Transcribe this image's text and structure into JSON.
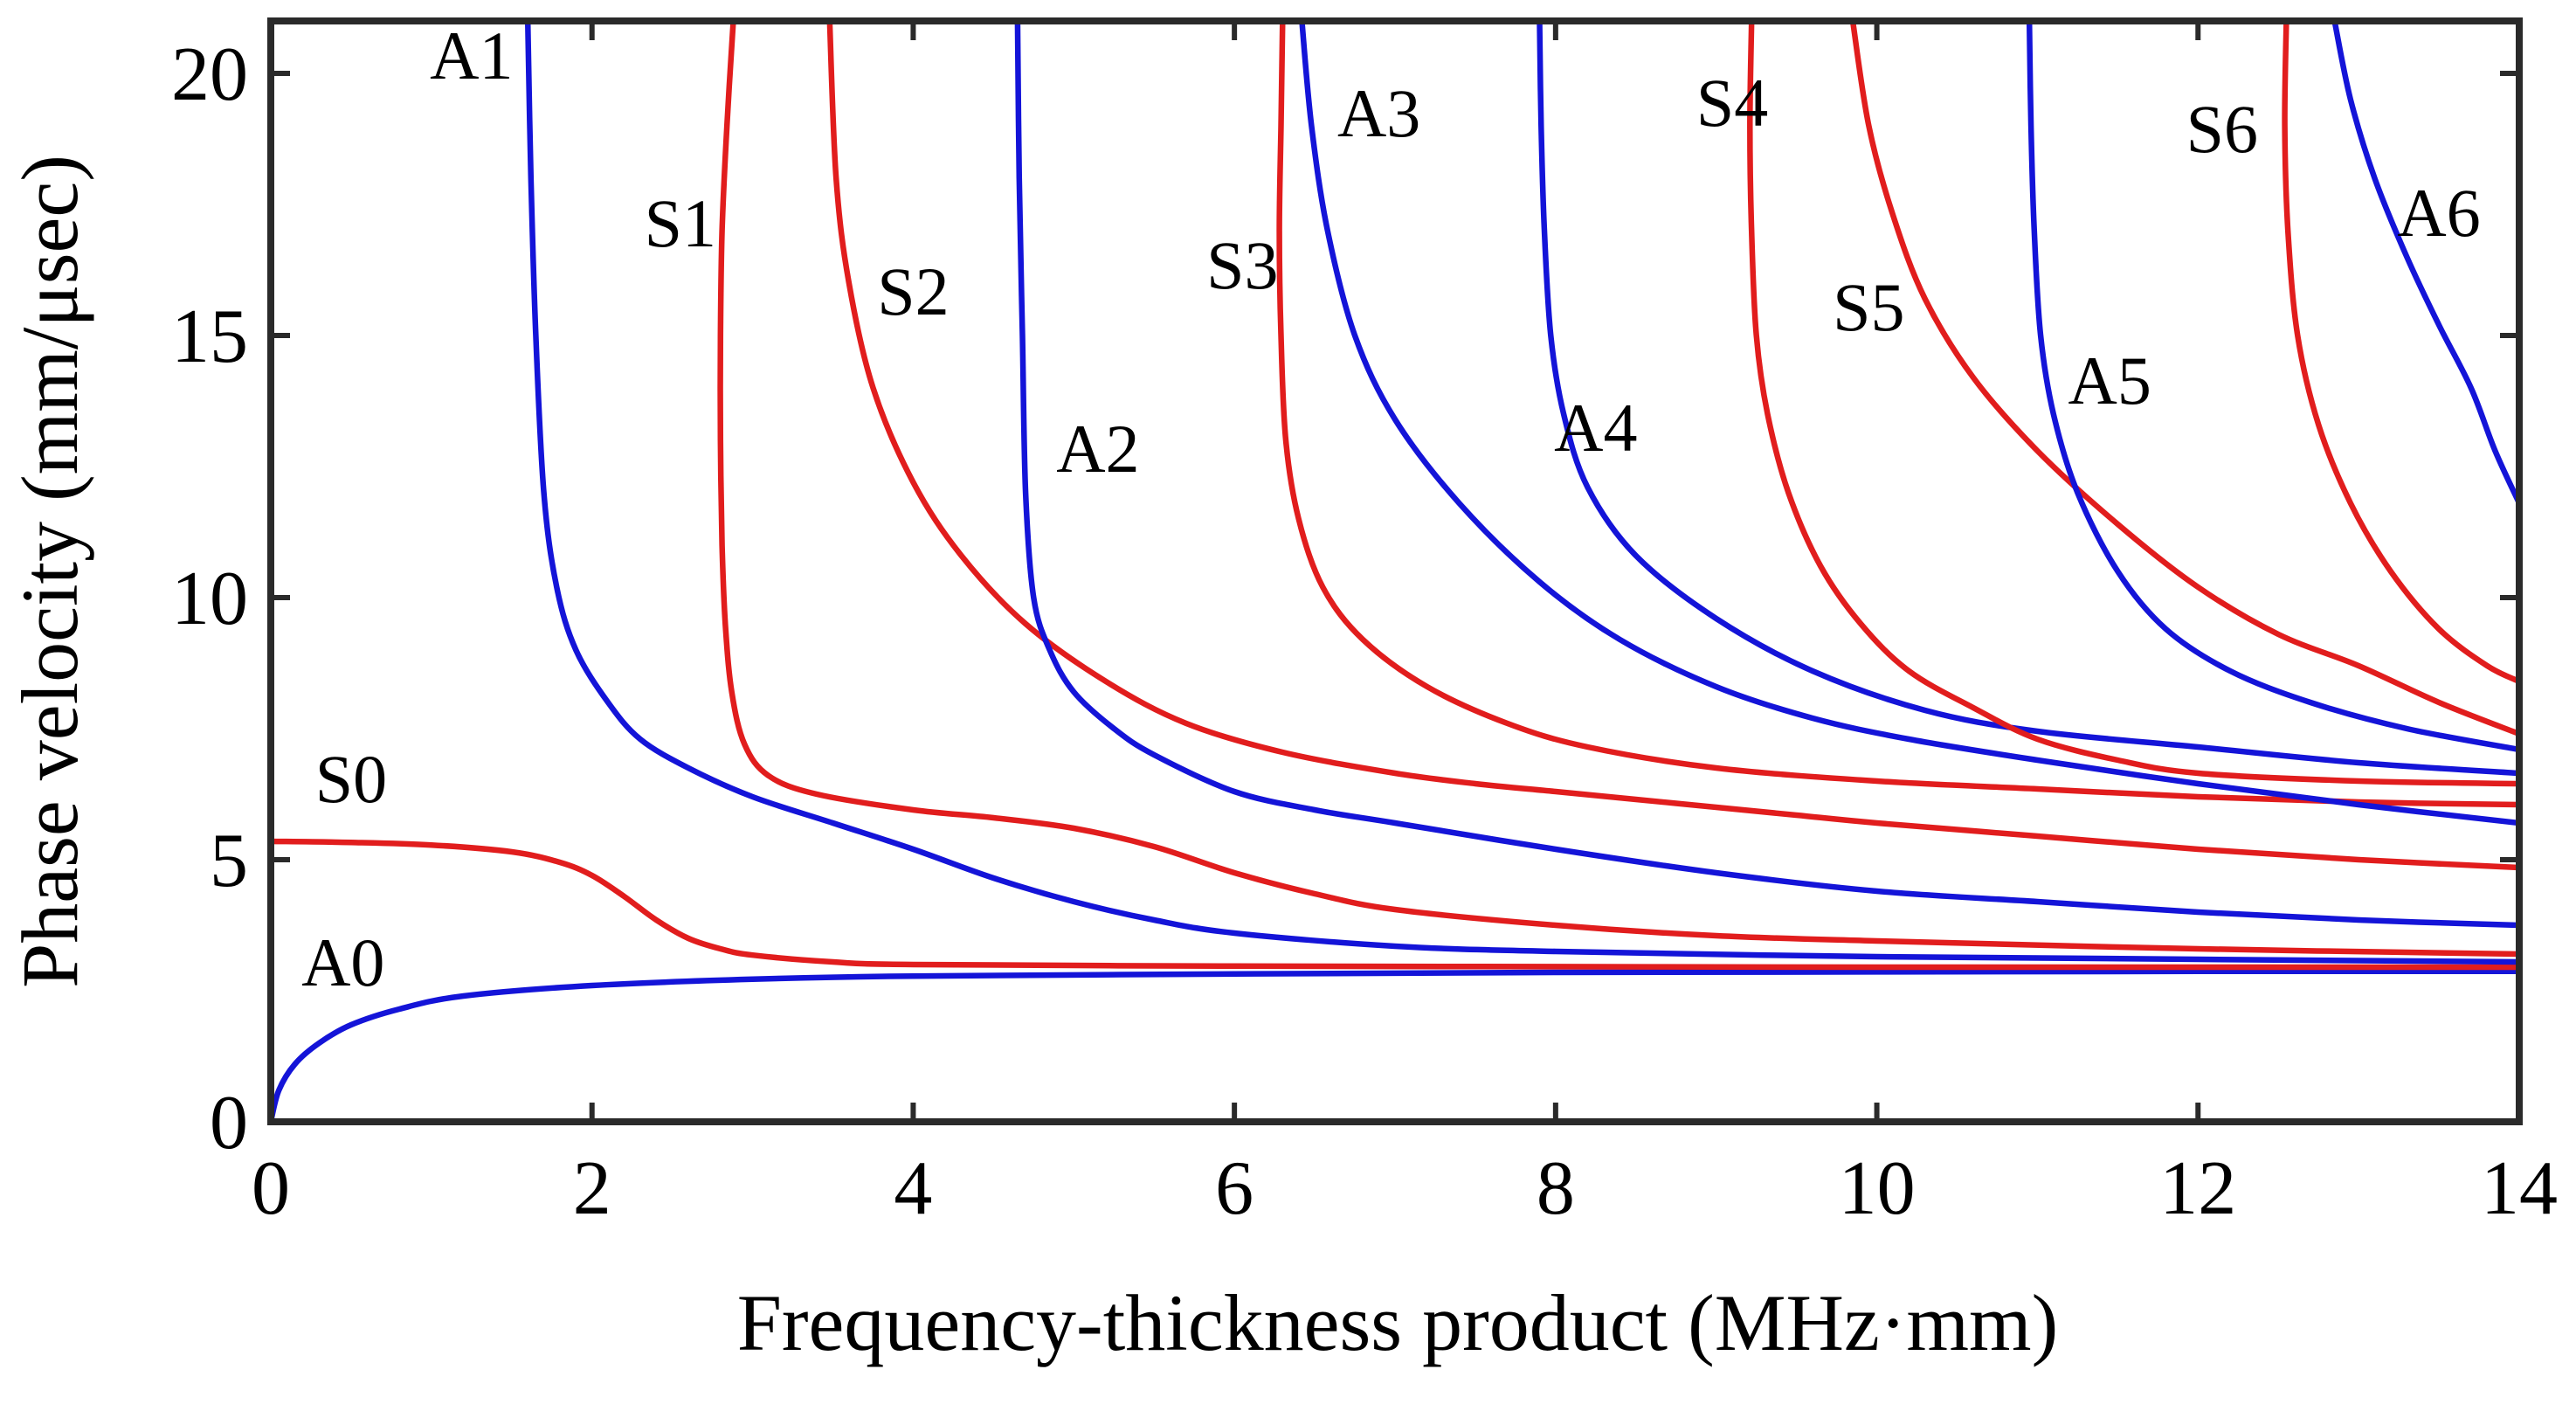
{
  "chart_data": {
    "type": "line",
    "xlabel": "Frequency-thickness product (MHz·mm)",
    "ylabel": "Phase velocity (mm/μsec)",
    "xlim": [
      0,
      14
    ],
    "ylim": [
      0,
      21
    ],
    "xticks": [
      0,
      2,
      4,
      6,
      8,
      10,
      12,
      14
    ],
    "yticks": [
      0,
      5,
      10,
      15,
      20
    ],
    "xtick_labels": [
      "0",
      "2",
      "4",
      "6",
      "8",
      "10",
      "12",
      "14"
    ],
    "ytick_labels": [
      "0",
      "5",
      "10",
      "15",
      "20"
    ],
    "grid": false,
    "colors": {
      "symmetric": "#e11d1d",
      "antisymmetric": "#1414d8",
      "axis": "#2a2a2a"
    },
    "series": [
      {
        "name": "A0",
        "family": "antisymmetric",
        "label": "A0",
        "label_at": [
          0.45,
          2.6
        ],
        "points": [
          [
            0,
            0
          ],
          [
            0.05,
            0.6
          ],
          [
            0.15,
            1.1
          ],
          [
            0.3,
            1.5
          ],
          [
            0.5,
            1.85
          ],
          [
            0.8,
            2.15
          ],
          [
            1.2,
            2.4
          ],
          [
            2,
            2.6
          ],
          [
            3,
            2.72
          ],
          [
            4,
            2.78
          ],
          [
            6,
            2.82
          ],
          [
            8,
            2.85
          ],
          [
            10,
            2.86
          ],
          [
            12,
            2.87
          ],
          [
            14,
            2.87
          ]
        ]
      },
      {
        "name": "S0",
        "family": "symmetric",
        "label": "S0",
        "label_at": [
          0.5,
          6.1
        ],
        "points": [
          [
            0,
            5.35
          ],
          [
            0.5,
            5.33
          ],
          [
            1,
            5.28
          ],
          [
            1.5,
            5.15
          ],
          [
            1.8,
            4.95
          ],
          [
            2.0,
            4.7
          ],
          [
            2.2,
            4.3
          ],
          [
            2.4,
            3.85
          ],
          [
            2.6,
            3.5
          ],
          [
            2.8,
            3.3
          ],
          [
            3,
            3.18
          ],
          [
            3.5,
            3.05
          ],
          [
            4,
            3.0
          ],
          [
            6,
            2.97
          ],
          [
            8,
            2.96
          ],
          [
            10,
            2.95
          ],
          [
            14,
            2.95
          ]
        ]
      },
      {
        "name": "A1",
        "family": "antisymmetric",
        "label": "A1",
        "label_at": [
          1.25,
          19.9
        ],
        "points": [
          [
            1.6,
            21
          ],
          [
            1.62,
            18
          ],
          [
            1.65,
            15
          ],
          [
            1.7,
            12
          ],
          [
            1.78,
            10.2
          ],
          [
            1.9,
            9
          ],
          [
            2.1,
            8
          ],
          [
            2.3,
            7.3
          ],
          [
            2.6,
            6.75
          ],
          [
            3,
            6.2
          ],
          [
            3.5,
            5.7
          ],
          [
            4,
            5.2
          ],
          [
            4.5,
            4.65
          ],
          [
            5,
            4.2
          ],
          [
            5.5,
            3.85
          ],
          [
            6,
            3.6
          ],
          [
            7,
            3.35
          ],
          [
            8,
            3.25
          ],
          [
            10,
            3.15
          ],
          [
            12,
            3.1
          ],
          [
            14,
            3.05
          ]
        ]
      },
      {
        "name": "S1",
        "family": "symmetric",
        "label": "S1",
        "label_at": [
          2.55,
          16.7
        ],
        "points": [
          [
            2.88,
            21
          ],
          [
            2.84,
            19
          ],
          [
            2.81,
            17
          ],
          [
            2.8,
            15
          ],
          [
            2.8,
            13
          ],
          [
            2.81,
            11
          ],
          [
            2.83,
            9.5
          ],
          [
            2.87,
            8.2
          ],
          [
            2.95,
            7.2
          ],
          [
            3.1,
            6.6
          ],
          [
            3.4,
            6.25
          ],
          [
            4,
            5.95
          ],
          [
            4.5,
            5.8
          ],
          [
            5,
            5.6
          ],
          [
            5.5,
            5.25
          ],
          [
            6,
            4.75
          ],
          [
            6.5,
            4.35
          ],
          [
            7,
            4.05
          ],
          [
            8,
            3.75
          ],
          [
            9,
            3.55
          ],
          [
            10,
            3.45
          ],
          [
            12,
            3.3
          ],
          [
            14,
            3.2
          ]
        ]
      },
      {
        "name": "S2",
        "family": "symmetric",
        "label": "S2",
        "label_at": [
          4.0,
          15.4
        ],
        "points": [
          [
            3.48,
            21
          ],
          [
            3.52,
            18
          ],
          [
            3.6,
            16
          ],
          [
            3.75,
            14
          ],
          [
            4,
            12.2
          ],
          [
            4.3,
            10.8
          ],
          [
            4.7,
            9.5
          ],
          [
            5.2,
            8.4
          ],
          [
            5.7,
            7.6
          ],
          [
            6.3,
            7.05
          ],
          [
            7,
            6.65
          ],
          [
            7.5,
            6.45
          ],
          [
            8,
            6.3
          ],
          [
            8.5,
            6.15
          ],
          [
            9,
            6.0
          ],
          [
            9.5,
            5.85
          ],
          [
            10,
            5.7
          ],
          [
            11,
            5.45
          ],
          [
            12,
            5.2
          ],
          [
            13,
            5.0
          ],
          [
            14,
            4.85
          ]
        ]
      },
      {
        "name": "A2",
        "family": "antisymmetric",
        "label": "A2",
        "label_at": [
          5.15,
          12.4
        ],
        "points": [
          [
            4.65,
            21
          ],
          [
            4.66,
            18
          ],
          [
            4.68,
            15
          ],
          [
            4.7,
            12
          ],
          [
            4.75,
            10
          ],
          [
            4.85,
            9
          ],
          [
            5,
            8.2
          ],
          [
            5.25,
            7.5
          ],
          [
            5.5,
            7.0
          ],
          [
            6,
            6.3
          ],
          [
            6.5,
            5.95
          ],
          [
            7,
            5.7
          ],
          [
            8,
            5.2
          ],
          [
            9,
            4.75
          ],
          [
            10,
            4.4
          ],
          [
            11,
            4.2
          ],
          [
            12,
            4.0
          ],
          [
            13,
            3.85
          ],
          [
            14,
            3.75
          ]
        ]
      },
      {
        "name": "S3",
        "family": "symmetric",
        "label": "S3",
        "label_at": [
          6.05,
          15.9
        ],
        "points": [
          [
            6.3,
            21
          ],
          [
            6.29,
            19
          ],
          [
            6.28,
            17
          ],
          [
            6.29,
            15
          ],
          [
            6.32,
            13
          ],
          [
            6.4,
            11.5
          ],
          [
            6.55,
            10.2
          ],
          [
            6.8,
            9.2
          ],
          [
            7.2,
            8.3
          ],
          [
            7.7,
            7.6
          ],
          [
            8.2,
            7.15
          ],
          [
            9,
            6.75
          ],
          [
            10,
            6.5
          ],
          [
            11,
            6.35
          ],
          [
            12,
            6.2
          ],
          [
            13,
            6.1
          ],
          [
            14,
            6.05
          ]
        ]
      },
      {
        "name": "A3",
        "family": "antisymmetric",
        "label": "A3",
        "label_at": [
          6.9,
          18.8
        ],
        "points": [
          [
            6.42,
            21
          ],
          [
            6.48,
            19
          ],
          [
            6.58,
            17
          ],
          [
            6.75,
            15
          ],
          [
            7,
            13.4
          ],
          [
            7.4,
            11.8
          ],
          [
            7.9,
            10.3
          ],
          [
            8.4,
            9.2
          ],
          [
            9,
            8.3
          ],
          [
            9.6,
            7.7
          ],
          [
            10.2,
            7.3
          ],
          [
            11,
            6.9
          ],
          [
            12,
            6.45
          ],
          [
            13,
            6.05
          ],
          [
            14,
            5.7
          ]
        ]
      },
      {
        "name": "A4",
        "family": "antisymmetric",
        "label": "A4",
        "label_at": [
          8.25,
          12.8
        ],
        "points": [
          [
            7.9,
            21
          ],
          [
            7.91,
            19
          ],
          [
            7.93,
            17
          ],
          [
            7.97,
            15
          ],
          [
            8.05,
            13.5
          ],
          [
            8.2,
            12.1
          ],
          [
            8.5,
            10.8
          ],
          [
            9,
            9.6
          ],
          [
            9.6,
            8.6
          ],
          [
            10.3,
            7.85
          ],
          [
            11,
            7.45
          ],
          [
            12,
            7.15
          ],
          [
            13,
            6.85
          ],
          [
            14,
            6.65
          ]
        ]
      },
      {
        "name": "S4",
        "family": "symmetric",
        "label": "S4",
        "label_at": [
          9.1,
          19.0
        ],
        "points": [
          [
            9.22,
            21
          ],
          [
            9.21,
            19
          ],
          [
            9.22,
            17
          ],
          [
            9.25,
            15
          ],
          [
            9.32,
            13.5
          ],
          [
            9.45,
            12
          ],
          [
            9.65,
            10.6
          ],
          [
            9.9,
            9.5
          ],
          [
            10.2,
            8.6
          ],
          [
            10.6,
            7.9
          ],
          [
            11,
            7.3
          ],
          [
            11.5,
            6.9
          ],
          [
            12,
            6.65
          ],
          [
            13,
            6.5
          ],
          [
            14,
            6.45
          ]
        ]
      },
      {
        "name": "S5",
        "family": "symmetric",
        "label": "S5",
        "label_at": [
          9.95,
          15.1
        ],
        "points": [
          [
            9.85,
            21
          ],
          [
            9.95,
            19
          ],
          [
            10.1,
            17.3
          ],
          [
            10.3,
            15.7
          ],
          [
            10.6,
            14.2
          ],
          [
            11,
            12.8
          ],
          [
            11.5,
            11.4
          ],
          [
            12,
            10.2
          ],
          [
            12.5,
            9.3
          ],
          [
            13,
            8.7
          ],
          [
            13.5,
            8.0
          ],
          [
            14,
            7.4
          ]
        ]
      },
      {
        "name": "A5",
        "family": "antisymmetric",
        "label": "A5",
        "label_at": [
          11.45,
          13.7
        ],
        "points": [
          [
            10.95,
            21
          ],
          [
            10.96,
            19
          ],
          [
            10.98,
            17
          ],
          [
            11.02,
            15
          ],
          [
            11.1,
            13.5
          ],
          [
            11.25,
            12
          ],
          [
            11.5,
            10.5
          ],
          [
            11.8,
            9.4
          ],
          [
            12.2,
            8.6
          ],
          [
            12.7,
            8.0
          ],
          [
            13.3,
            7.5
          ],
          [
            14,
            7.1
          ]
        ]
      },
      {
        "name": "S6",
        "family": "symmetric",
        "label": "S6",
        "label_at": [
          12.15,
          18.5
        ],
        "points": [
          [
            12.55,
            21
          ],
          [
            12.54,
            19
          ],
          [
            12.56,
            17
          ],
          [
            12.62,
            15
          ],
          [
            12.75,
            13.3
          ],
          [
            12.95,
            11.8
          ],
          [
            13.2,
            10.5
          ],
          [
            13.5,
            9.4
          ],
          [
            13.8,
            8.7
          ],
          [
            14,
            8.4
          ]
        ]
      },
      {
        "name": "A6",
        "family": "antisymmetric",
        "label": "A6",
        "label_at": [
          13.5,
          16.9
        ],
        "points": [
          [
            12.85,
            21
          ],
          [
            12.95,
            19.5
          ],
          [
            13.1,
            18
          ],
          [
            13.3,
            16.5
          ],
          [
            13.5,
            15.2
          ],
          [
            13.7,
            14.0
          ],
          [
            13.85,
            12.8
          ],
          [
            14,
            11.8
          ]
        ]
      }
    ]
  }
}
